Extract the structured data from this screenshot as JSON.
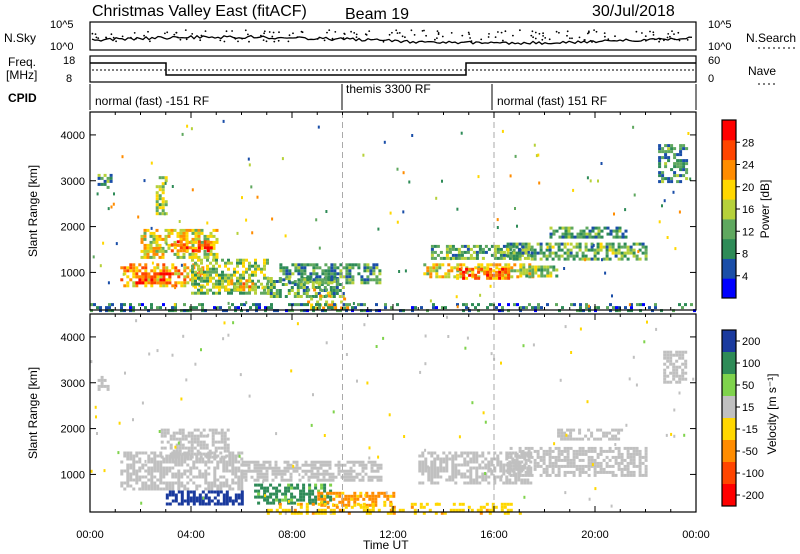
{
  "header": {
    "title": "Christmas Valley East (fitACF)",
    "beam": "Beam 19",
    "date": "30/Jul/2018"
  },
  "colors": {
    "power_scale": [
      "#0000ff",
      "#1a4ea8",
      "#2e8b57",
      "#5fa85f",
      "#b6d13a",
      "#ffd700",
      "#ff8c00",
      "#ff4500",
      "#ff0000"
    ],
    "velocity_scale": [
      "#1a3a9e",
      "#2e8b57",
      "#7fd34c",
      "#c0c0c0",
      "#ffd700",
      "#ff8c00",
      "#ff4500",
      "#ff0000"
    ],
    "ground_scatter": "#c0c0c0",
    "dashed_line": "#aaaaaa"
  },
  "panels": {
    "noise": {
      "left_label": "N.Sky",
      "right_label": "N.Search",
      "left_ticks": [
        "10^5",
        "10^0"
      ],
      "right_ticks": [
        "10^5",
        "10^0"
      ]
    },
    "freq": {
      "left_label": [
        "Freq.",
        "[MHz]"
      ],
      "right_label": "Nave",
      "left_ticks": [
        "18",
        "8"
      ],
      "right_ticks": [
        "60",
        "0"
      ]
    },
    "cpid": {
      "label": "CPID",
      "segments": [
        "normal (fast) -151 RF",
        "themis 3300 RF",
        "normal (fast) 151 RF"
      ]
    }
  },
  "chart_data": [
    {
      "type": "heatmap",
      "name": "power",
      "ylabel": "Slant Range [km]",
      "xlabel": "",
      "x_unit": "hours UT",
      "xlim": [
        0,
        24
      ],
      "ylim": [
        180,
        4500
      ],
      "yticks": [
        1000,
        2000,
        3000,
        4000
      ],
      "colorbar": {
        "label": "Power [dB]",
        "ticks": [
          4,
          8,
          12,
          16,
          20,
          24,
          28
        ],
        "range": [
          0,
          32
        ]
      },
      "dashed_times": [
        10,
        16
      ],
      "regions": [
        {
          "t": [
            1.2,
            4.5
          ],
          "r": [
            700,
            1200
          ],
          "v": 22
        },
        {
          "t": [
            1.8,
            3.2
          ],
          "r": [
            800,
            1000
          ],
          "v": 28
        },
        {
          "t": [
            2.0,
            5.0
          ],
          "r": [
            1350,
            1950
          ],
          "v": 18
        },
        {
          "t": [
            3.2,
            4.8
          ],
          "r": [
            1500,
            1700
          ],
          "v": 26
        },
        {
          "t": [
            4.0,
            7.0
          ],
          "r": [
            550,
            1300
          ],
          "v": 14
        },
        {
          "t": [
            5.2,
            6.4
          ],
          "r": [
            650,
            850
          ],
          "v": 20
        },
        {
          "t": [
            7.0,
            10.0
          ],
          "r": [
            500,
            900
          ],
          "v": 12
        },
        {
          "t": [
            7.5,
            11.5
          ],
          "r": [
            800,
            1200
          ],
          "v": 10
        },
        {
          "t": [
            8.6,
            10.2
          ],
          "r": [
            250,
            650
          ],
          "v": 18
        },
        {
          "t": [
            0.3,
            0.8
          ],
          "r": [
            2850,
            3150
          ],
          "v": 10
        },
        {
          "t": [
            2.6,
            3.0
          ],
          "r": [
            2300,
            3100
          ],
          "v": 14
        },
        {
          "t": [
            13.2,
            17.5
          ],
          "r": [
            900,
            1200
          ],
          "v": 18
        },
        {
          "t": [
            14.5,
            16.6
          ],
          "r": [
            850,
            1100
          ],
          "v": 24
        },
        {
          "t": [
            13.5,
            17.5
          ],
          "r": [
            1300,
            1600
          ],
          "v": 12
        },
        {
          "t": [
            16.5,
            22.0
          ],
          "r": [
            1300,
            1650
          ],
          "v": 12
        },
        {
          "t": [
            18.2,
            21.2
          ],
          "r": [
            1800,
            2000
          ],
          "v": 10
        },
        {
          "t": [
            17.0,
            18.5
          ],
          "r": [
            950,
            1150
          ],
          "v": 14
        },
        {
          "t": [
            22.5,
            23.6
          ],
          "r": [
            3000,
            3800
          ],
          "v": 10
        },
        {
          "t": [
            0.0,
            24.0
          ],
          "r": [
            180,
            330
          ],
          "v": 8
        }
      ]
    },
    {
      "type": "heatmap",
      "name": "velocity",
      "ylabel": "Slant Range [km]",
      "xlabel": "Time UT",
      "x_unit": "hours UT",
      "xlim": [
        0,
        24
      ],
      "ylim": [
        180,
        4500
      ],
      "yticks": [
        1000,
        2000,
        3000,
        4000
      ],
      "xticks": [
        "00:00",
        "04:00",
        "08:00",
        "12:00",
        "16:00",
        "20:00",
        "00:00"
      ],
      "colorbar": {
        "label": "Velocity [m s⁻¹]",
        "ticks": [
          200,
          100,
          50,
          15,
          -15,
          -50,
          -100,
          -200
        ]
      },
      "dashed_times": [
        10,
        16
      ],
      "regions": [
        {
          "t": [
            1.2,
            6.0
          ],
          "r": [
            700,
            1500
          ],
          "v": 0
        },
        {
          "t": [
            2.8,
            5.5
          ],
          "r": [
            1400,
            2000
          ],
          "v": 0
        },
        {
          "t": [
            6.0,
            11.5
          ],
          "r": [
            900,
            1300
          ],
          "v": 0
        },
        {
          "t": [
            3.0,
            6.0
          ],
          "r": [
            380,
            650
          ],
          "v": 150
        },
        {
          "t": [
            6.5,
            9.5
          ],
          "r": [
            380,
            800
          ],
          "v": 60
        },
        {
          "t": [
            9.0,
            12.0
          ],
          "r": [
            350,
            620
          ],
          "v": -60
        },
        {
          "t": [
            13.0,
            17.5
          ],
          "r": [
            800,
            1500
          ],
          "v": 0
        },
        {
          "t": [
            16.5,
            22.0
          ],
          "r": [
            1000,
            1600
          ],
          "v": 0
        },
        {
          "t": [
            18.5,
            21.0
          ],
          "r": [
            1800,
            2000
          ],
          "v": 0
        },
        {
          "t": [
            0.3,
            0.7
          ],
          "r": [
            2850,
            3150
          ],
          "v": 0
        },
        {
          "t": [
            22.7,
            23.6
          ],
          "r": [
            3000,
            3700
          ],
          "v": 0
        },
        {
          "t": [
            7.0,
            17.0
          ],
          "r": [
            180,
            380
          ],
          "v": -40
        }
      ]
    }
  ]
}
